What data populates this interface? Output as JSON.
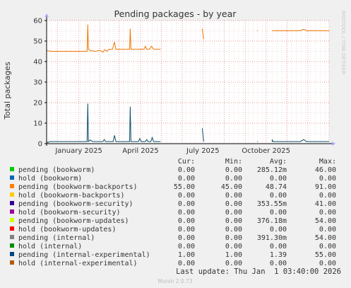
{
  "chart_data": {
    "type": "line",
    "title": "Pending packages - by year",
    "ylabel": "Total packages",
    "side_label": "RRDTOOL / TOBI OETIKER",
    "ylim": [
      0,
      60
    ],
    "yticks": [
      0,
      10,
      20,
      30,
      40,
      50,
      60
    ],
    "xlim": [
      "2024-11-15",
      "2026-01-01"
    ],
    "xticks": [
      {
        "label": "January 2025",
        "date": "2025-01-01"
      },
      {
        "label": "April 2025",
        "date": "2025-04-01"
      },
      {
        "label": "July 2025",
        "date": "2025-07-01"
      },
      {
        "label": "October 2025",
        "date": "2025-10-01"
      }
    ],
    "grid": true,
    "series": [
      {
        "name": "pending (bookworm-backports)",
        "color": "#ee7700",
        "segments": [
          [
            [
              "2024-11-15",
              45.3
            ],
            [
              "2024-11-22",
              45.0
            ],
            [
              "2025-01-13",
              45.0
            ],
            [
              "2025-01-14",
              58.0
            ],
            [
              "2025-01-15",
              46.0
            ],
            [
              "2025-01-18",
              45.3
            ],
            [
              "2025-01-25",
              45.0
            ],
            [
              "2025-02-01",
              45.5
            ],
            [
              "2025-02-05",
              44.6
            ],
            [
              "2025-02-08",
              45.8
            ],
            [
              "2025-02-11",
              45.0
            ],
            [
              "2025-02-14",
              46.0
            ],
            [
              "2025-02-19",
              46.0
            ],
            [
              "2025-02-22",
              49.5
            ],
            [
              "2025-02-24",
              46.0
            ],
            [
              "2025-03-10",
              46.0
            ],
            [
              "2025-03-16",
              46.0
            ],
            [
              "2025-03-17",
              56.0
            ],
            [
              "2025-03-18",
              46.0
            ],
            [
              "2025-04-02",
              46.0
            ],
            [
              "2025-04-06",
              46.0
            ],
            [
              "2025-04-08",
              47.5
            ],
            [
              "2025-04-10",
              46.0
            ],
            [
              "2025-04-14",
              46.0
            ],
            [
              "2025-04-17",
              47.5
            ],
            [
              "2025-04-20",
              46.0
            ],
            [
              "2025-04-30",
              46.0
            ]
          ],
          [
            [
              "2025-06-30",
              56.0
            ],
            [
              "2025-07-02",
              51.0
            ]
          ],
          [
            [
              "2025-09-18",
              55.0
            ],
            [
              "2025-09-19",
              55.0
            ]
          ],
          [
            [
              "2025-10-10",
              55.0
            ],
            [
              "2025-11-20",
              55.0
            ],
            [
              "2025-11-25",
              55.8
            ],
            [
              "2025-11-29",
              55.0
            ],
            [
              "2026-01-01",
              55.0
            ]
          ]
        ]
      },
      {
        "name": "pending (internal-experimental)",
        "color": "#0b4d6a",
        "segments": [
          [
            [
              "2024-11-15",
              1.0
            ],
            [
              "2024-11-17",
              0.5
            ],
            [
              "2024-11-19",
              1.0
            ],
            [
              "2024-11-22",
              1.0
            ],
            [
              "2025-01-13",
              1.0
            ],
            [
              "2025-01-14",
              19.5
            ],
            [
              "2025-01-15",
              1.0
            ],
            [
              "2025-01-18",
              1.8
            ],
            [
              "2025-01-21",
              1.0
            ],
            [
              "2025-02-05",
              1.0
            ],
            [
              "2025-02-07",
              2.0
            ],
            [
              "2025-02-09",
              1.0
            ],
            [
              "2025-02-20",
              1.0
            ],
            [
              "2025-02-22",
              4.0
            ],
            [
              "2025-02-24",
              1.0
            ],
            [
              "2025-03-16",
              1.0
            ],
            [
              "2025-03-17",
              18.0
            ],
            [
              "2025-03-18",
              1.0
            ],
            [
              "2025-03-29",
              1.0
            ],
            [
              "2025-03-31",
              2.5
            ],
            [
              "2025-04-02",
              1.0
            ],
            [
              "2025-04-08",
              1.0
            ],
            [
              "2025-04-10",
              2.0
            ],
            [
              "2025-04-12",
              1.0
            ],
            [
              "2025-04-16",
              1.0
            ],
            [
              "2025-04-18",
              3.0
            ],
            [
              "2025-04-20",
              1.0
            ],
            [
              "2025-04-30",
              1.0
            ]
          ],
          [
            [
              "2025-06-30",
              7.5
            ],
            [
              "2025-07-02",
              1.0
            ]
          ],
          [
            [
              "2025-09-18",
              1.0
            ],
            [
              "2025-09-19",
              1.0
            ]
          ],
          [
            [
              "2025-10-10",
              1.0
            ],
            [
              "2025-10-10",
              2.0
            ],
            [
              "2025-10-11",
              1.0
            ],
            [
              "2025-11-20",
              1.0
            ],
            [
              "2025-11-25",
              2.0
            ],
            [
              "2025-11-29",
              1.0
            ],
            [
              "2026-01-01",
              1.0
            ]
          ]
        ]
      },
      {
        "name": "pending (internal)",
        "color": "#00cc00",
        "dashed": true,
        "segments": [
          [
            [
              "2024-11-15",
              0.0
            ],
            [
              "2026-01-01",
              0.0
            ]
          ]
        ]
      }
    ]
  },
  "legend": {
    "headers": [
      "Cur:",
      "Min:",
      "Avg:",
      "Max:"
    ],
    "rows": [
      {
        "name": "pending (bookworm)",
        "color": "#00cc00",
        "cur": "0.00",
        "min": "0.00",
        "avg": "285.12m",
        "max": "46.00"
      },
      {
        "name": "hold (bookworm)",
        "color": "#0066b3",
        "cur": "0.00",
        "min": "0.00",
        "avg": "0.00",
        "max": "0.00"
      },
      {
        "name": "pending (bookworm-backports)",
        "color": "#ff8000",
        "cur": "55.00",
        "min": "45.00",
        "avg": "48.74",
        "max": "91.00"
      },
      {
        "name": "hold (bookworm-backports)",
        "color": "#ffcc00",
        "cur": "0.00",
        "min": "0.00",
        "avg": "0.00",
        "max": "0.00"
      },
      {
        "name": "pending (bookworm-security)",
        "color": "#330099",
        "cur": "0.00",
        "min": "0.00",
        "avg": "353.55m",
        "max": "41.00"
      },
      {
        "name": "hold (bookworm-security)",
        "color": "#990099",
        "cur": "0.00",
        "min": "0.00",
        "avg": "0.00",
        "max": "0.00"
      },
      {
        "name": "pending (bookworm-updates)",
        "color": "#ccff00",
        "cur": "0.00",
        "min": "0.00",
        "avg": "376.18m",
        "max": "54.00"
      },
      {
        "name": "hold (bookworm-updates)",
        "color": "#ff0000",
        "cur": "0.00",
        "min": "0.00",
        "avg": "0.00",
        "max": "0.00"
      },
      {
        "name": "pending (internal)",
        "color": "#808080",
        "cur": "0.00",
        "min": "0.00",
        "avg": "391.30m",
        "max": "54.00"
      },
      {
        "name": "hold (internal)",
        "color": "#008f00",
        "cur": "0.00",
        "min": "0.00",
        "avg": "0.00",
        "max": "0.00"
      },
      {
        "name": "pending (internal-experimental)",
        "color": "#00487d",
        "cur": "1.00",
        "min": "1.00",
        "avg": "1.39",
        "max": "55.00"
      },
      {
        "name": "hold (internal-experimental)",
        "color": "#b35a00",
        "cur": "0.00",
        "min": "0.00",
        "avg": "0.00",
        "max": "0.00"
      }
    ]
  },
  "last_update": "Last update: Thu Jan  1 03:40:00 2026",
  "footer": "Munin 2.0.73"
}
